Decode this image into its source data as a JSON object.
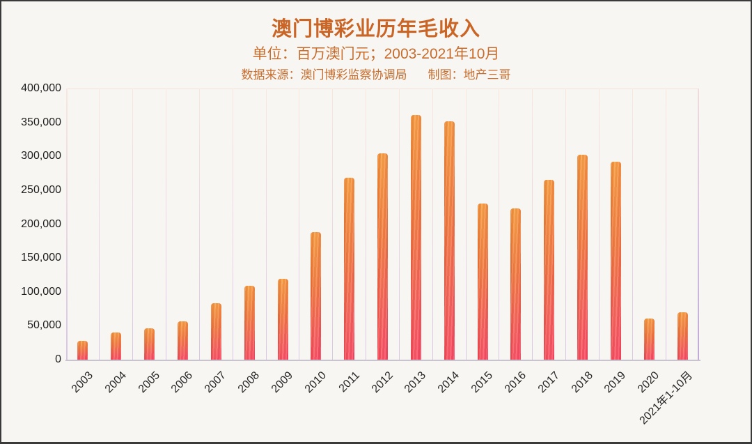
{
  "page": {
    "background": "#f7f6f3",
    "frame_color": "#3a3a3a",
    "accent_color": "#cb6526"
  },
  "header": {
    "title": "澳门博彩业历年毛收入",
    "subtitle": "单位：百万澳门元；2003-2021年10月",
    "source": "数据来源：澳门博彩监察协调局",
    "credit": "制图：地产三哥"
  },
  "chart_data": {
    "type": "bar",
    "title": "澳门博彩业历年毛收入",
    "unit": "百万澳门元",
    "xlabel": "",
    "ylabel": "",
    "ylim": [
      0,
      400000
    ],
    "ytick_interval": 50000,
    "ytick_labels": [
      "0",
      "50,000",
      "100,000",
      "150,000",
      "200,000",
      "250,000",
      "300,000",
      "350,000",
      "400,000"
    ],
    "grid": "vertical-only",
    "legend": "none",
    "bar_color_top": "#f99c3d",
    "bar_color_bottom": "#fb4663",
    "gridline_color_top": "#f8e7de",
    "gridline_color_bottom": "#d8c5e7",
    "categories": [
      "2003",
      "2004",
      "2005",
      "2006",
      "2007",
      "2008",
      "2009",
      "2010",
      "2011",
      "2012",
      "2013",
      "2014",
      "2015",
      "2016",
      "2017",
      "2018",
      "2019",
      "2020",
      "2021年1-10月"
    ],
    "values": [
      28000,
      40200,
      45800,
      56600,
      83000,
      108800,
      119400,
      188300,
      267900,
      304100,
      360700,
      351500,
      230800,
      223200,
      265700,
      302800,
      292500,
      60400,
      70000
    ]
  }
}
